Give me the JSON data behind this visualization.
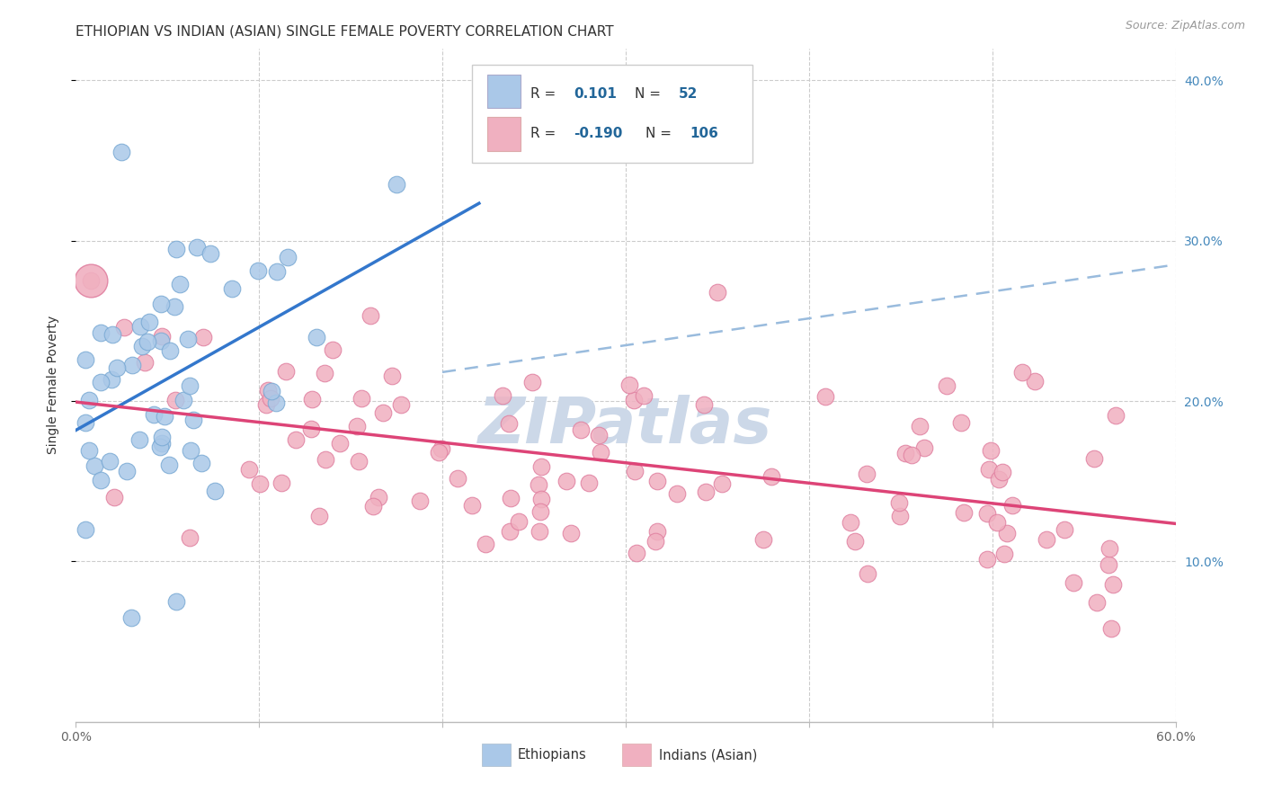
{
  "title": "ETHIOPIAN VS INDIAN (ASIAN) SINGLE FEMALE POVERTY CORRELATION CHART",
  "source": "Source: ZipAtlas.com",
  "ylabel": "Single Female Poverty",
  "xlim": [
    0.0,
    0.6
  ],
  "ylim": [
    0.0,
    0.42
  ],
  "xtick_positions": [
    0.0,
    0.1,
    0.2,
    0.3,
    0.4,
    0.5,
    0.6
  ],
  "xtick_labels": [
    "0.0%",
    "",
    "",
    "",
    "",
    "",
    "60.0%"
  ],
  "ytick_right_positions": [
    0.1,
    0.2,
    0.3,
    0.4
  ],
  "ytick_right_labels": [
    "10.0%",
    "20.0%",
    "30.0%",
    "40.0%"
  ],
  "ethiopian_R": 0.101,
  "ethiopian_N": 52,
  "indian_R": -0.19,
  "indian_N": 106,
  "blue_color": "#aac8e8",
  "blue_edge_color": "#7aaad4",
  "pink_color": "#f0b0c0",
  "pink_edge_color": "#e080a0",
  "blue_line_color": "#3377cc",
  "pink_line_color": "#dd4477",
  "dashed_line_color": "#99bbdd",
  "grid_color": "#cccccc",
  "background_color": "#ffffff",
  "right_axis_color": "#4488bb",
  "title_fontsize": 11,
  "axis_label_fontsize": 10,
  "tick_fontsize": 10,
  "watermark_color": "#ccd8e8",
  "watermark_fontsize": 52,
  "legend_R_color": "#226699",
  "legend_N_color": "#226699"
}
